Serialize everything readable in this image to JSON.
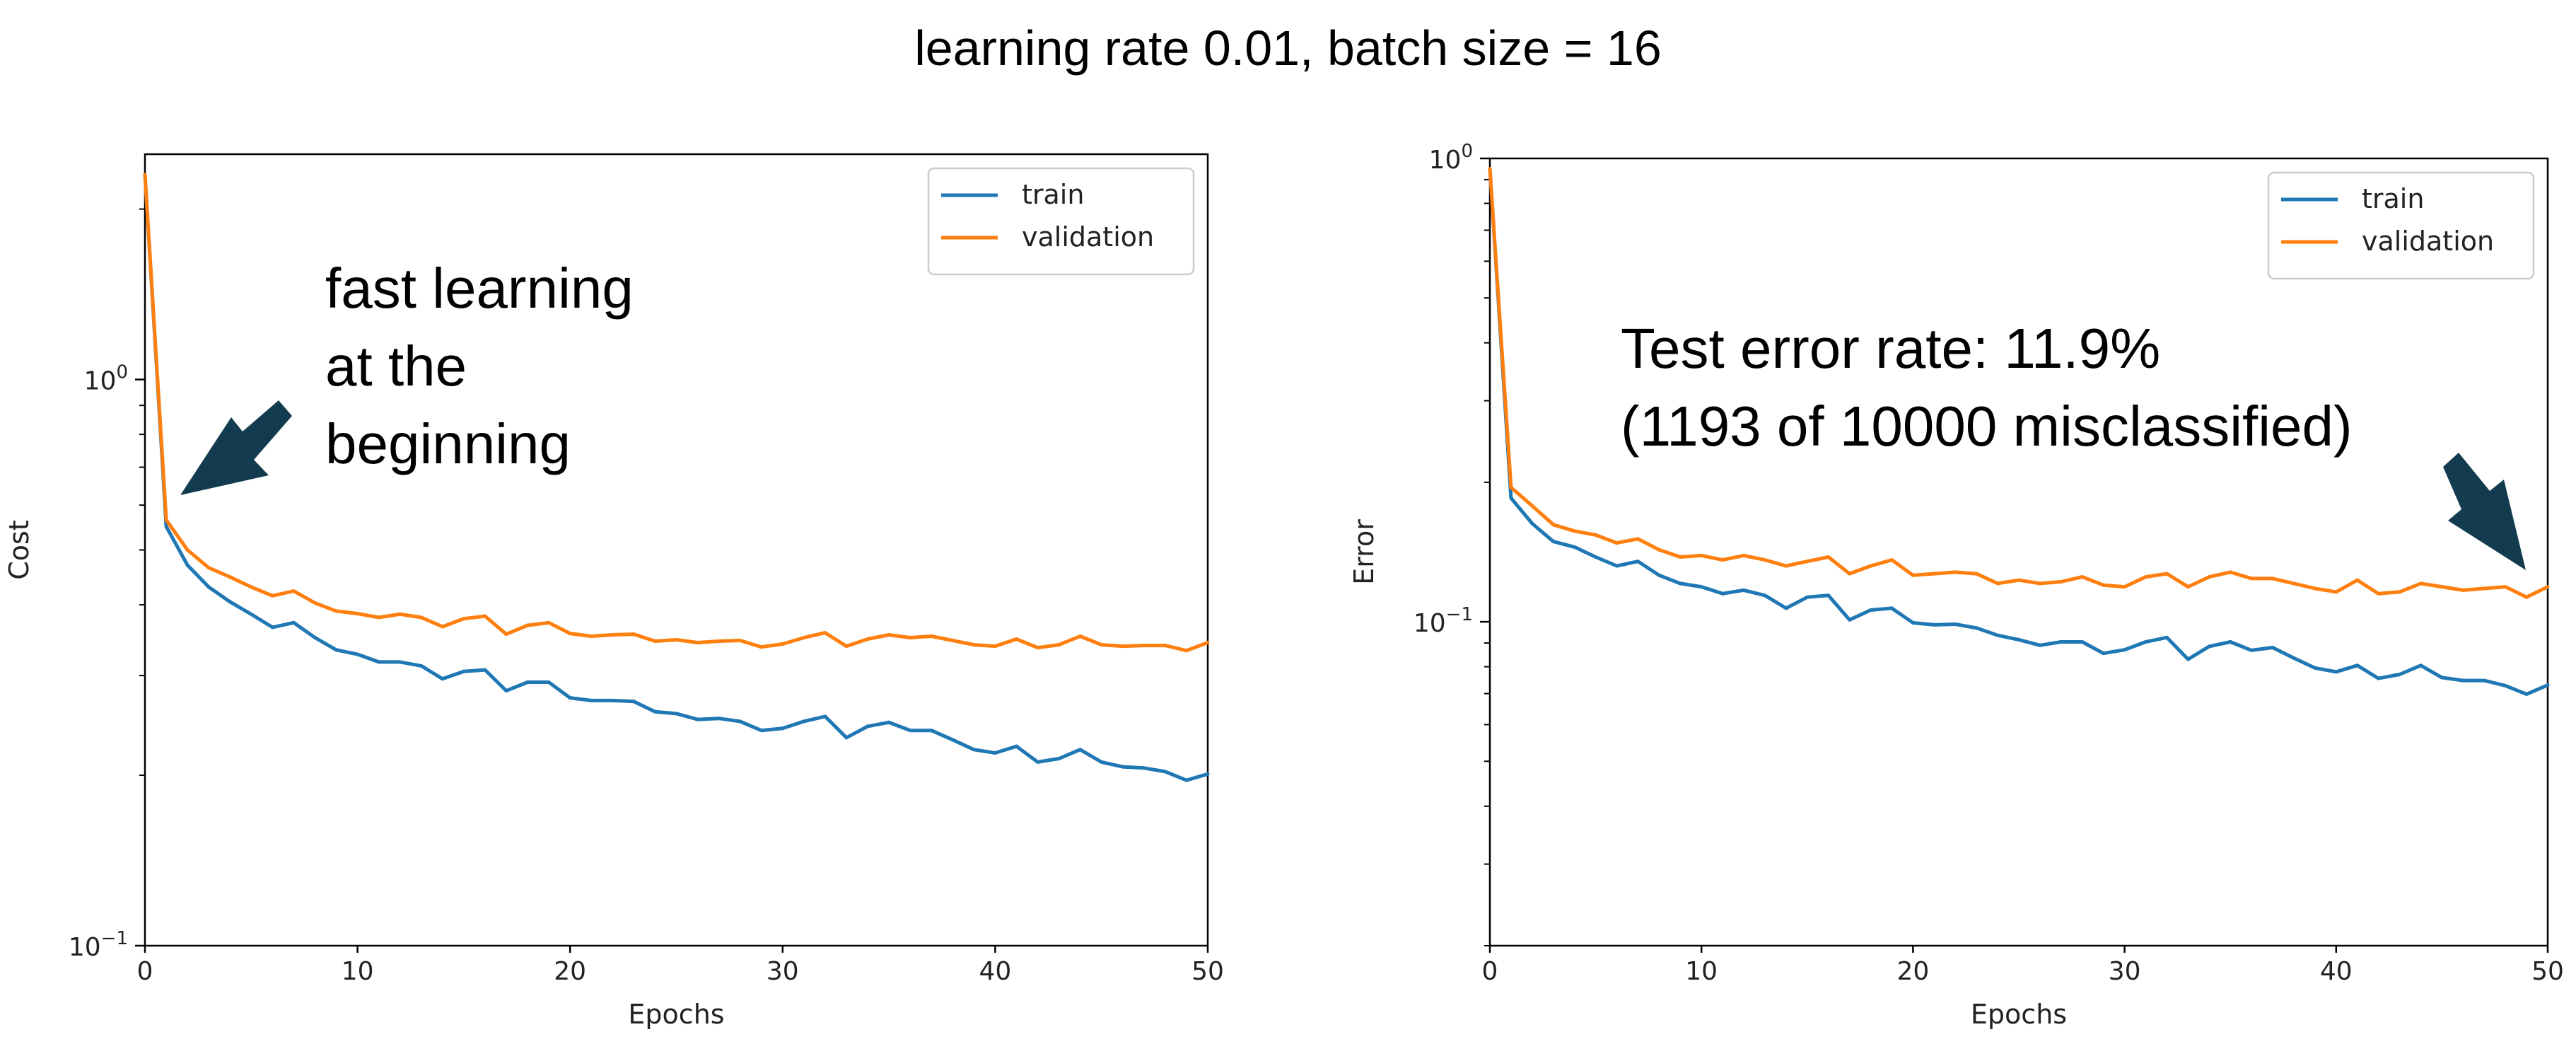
{
  "figure_title": "learning rate 0.01, batch size = 16",
  "colors": {
    "train": "#1f77b4",
    "validation": "#ff7f0e",
    "arrow": "#123b4f"
  },
  "chart_data": [
    {
      "type": "line",
      "xlabel": "Epochs",
      "ylabel": "Cost",
      "yscale": "log",
      "xlim": [
        0,
        50
      ],
      "ylim": [
        0.1,
        2.5
      ],
      "xticks": [
        0,
        10,
        20,
        30,
        40,
        50
      ],
      "ytick_labels": [
        {
          "value": 0.1,
          "base": "10",
          "exp": "−1"
        },
        {
          "value": 1,
          "base": "10",
          "exp": "0"
        }
      ],
      "grid": false,
      "legend_position": "top-right",
      "legend": [
        "train",
        "validation"
      ],
      "x": [
        0,
        1,
        2,
        3,
        4,
        5,
        6,
        7,
        8,
        9,
        10,
        11,
        12,
        13,
        14,
        15,
        16,
        17,
        18,
        19,
        20,
        21,
        22,
        23,
        24,
        25,
        26,
        27,
        28,
        29,
        30,
        31,
        32,
        33,
        34,
        35,
        36,
        37,
        38,
        39,
        40,
        41,
        42,
        43,
        44,
        45,
        46,
        47,
        48,
        49,
        50
      ],
      "series": [
        {
          "name": "train",
          "values": [
            2.3,
            0.55,
            0.47,
            0.43,
            0.405,
            0.385,
            0.365,
            0.372,
            0.35,
            0.333,
            0.327,
            0.317,
            0.317,
            0.312,
            0.296,
            0.305,
            0.307,
            0.282,
            0.292,
            0.292,
            0.274,
            0.271,
            0.271,
            0.27,
            0.259,
            0.257,
            0.251,
            0.252,
            0.249,
            0.24,
            0.242,
            0.249,
            0.254,
            0.233,
            0.244,
            0.248,
            0.24,
            0.24,
            0.231,
            0.222,
            0.219,
            0.225,
            0.211,
            0.214,
            0.222,
            0.211,
            0.207,
            0.206,
            0.203,
            0.196,
            0.201
          ]
        },
        {
          "name": "validation",
          "values": [
            2.3,
            0.565,
            0.5,
            0.465,
            0.448,
            0.43,
            0.415,
            0.423,
            0.403,
            0.39,
            0.386,
            0.38,
            0.385,
            0.38,
            0.366,
            0.378,
            0.382,
            0.355,
            0.368,
            0.372,
            0.356,
            0.352,
            0.354,
            0.355,
            0.345,
            0.347,
            0.343,
            0.345,
            0.346,
            0.337,
            0.341,
            0.35,
            0.357,
            0.338,
            0.348,
            0.354,
            0.35,
            0.352,
            0.346,
            0.34,
            0.338,
            0.348,
            0.336,
            0.34,
            0.352,
            0.34,
            0.338,
            0.339,
            0.339,
            0.332,
            0.343
          ]
        }
      ],
      "annotation": [
        "fast learning",
        "at the",
        "beginning"
      ]
    },
    {
      "type": "line",
      "xlabel": "Epochs",
      "ylabel": "Error",
      "yscale": "log",
      "xlim": [
        0,
        50
      ],
      "ylim": [
        0.02,
        1.0
      ],
      "xticks": [
        0,
        10,
        20,
        30,
        40,
        50
      ],
      "ytick_labels": [
        {
          "value": 0.1,
          "base": "10",
          "exp": "−1"
        },
        {
          "value": 1,
          "base": "10",
          "exp": "0"
        }
      ],
      "grid": false,
      "legend_position": "top-right",
      "legend": [
        "train",
        "validation"
      ],
      "x": [
        0,
        1,
        2,
        3,
        4,
        5,
        6,
        7,
        8,
        9,
        10,
        11,
        12,
        13,
        14,
        15,
        16,
        17,
        18,
        19,
        20,
        21,
        22,
        23,
        24,
        25,
        26,
        27,
        28,
        29,
        30,
        31,
        32,
        33,
        34,
        35,
        36,
        37,
        38,
        39,
        40,
        41,
        42,
        43,
        44,
        45,
        46,
        47,
        48,
        49,
        50
      ],
      "series": [
        {
          "name": "train",
          "values": [
            0.95,
            0.185,
            0.163,
            0.149,
            0.145,
            0.138,
            0.132,
            0.135,
            0.126,
            0.121,
            0.119,
            0.115,
            0.117,
            0.114,
            0.107,
            0.113,
            0.114,
            0.101,
            0.106,
            0.107,
            0.0995,
            0.0985,
            0.0988,
            0.097,
            0.0935,
            0.0915,
            0.089,
            0.0905,
            0.0905,
            0.0855,
            0.087,
            0.0905,
            0.0925,
            0.083,
            0.0885,
            0.0905,
            0.0868,
            0.088,
            0.0835,
            0.0795,
            0.078,
            0.0805,
            0.0755,
            0.077,
            0.0805,
            0.0758,
            0.0747,
            0.0747,
            0.0728,
            0.0698,
            0.073
          ]
        },
        {
          "name": "validation",
          "values": [
            0.95,
            0.195,
            0.178,
            0.162,
            0.157,
            0.154,
            0.148,
            0.151,
            0.143,
            0.138,
            0.139,
            0.136,
            0.139,
            0.136,
            0.132,
            0.135,
            0.138,
            0.127,
            0.132,
            0.136,
            0.126,
            0.127,
            0.128,
            0.127,
            0.121,
            0.123,
            0.121,
            0.122,
            0.125,
            0.12,
            0.119,
            0.125,
            0.127,
            0.119,
            0.125,
            0.128,
            0.124,
            0.124,
            0.121,
            0.118,
            0.116,
            0.123,
            0.115,
            0.116,
            0.121,
            0.119,
            0.117,
            0.118,
            0.119,
            0.113,
            0.119
          ]
        }
      ],
      "annotation": [
        "Test error rate: 11.9%",
        "(1193 of 10000 misclassified)"
      ]
    }
  ]
}
